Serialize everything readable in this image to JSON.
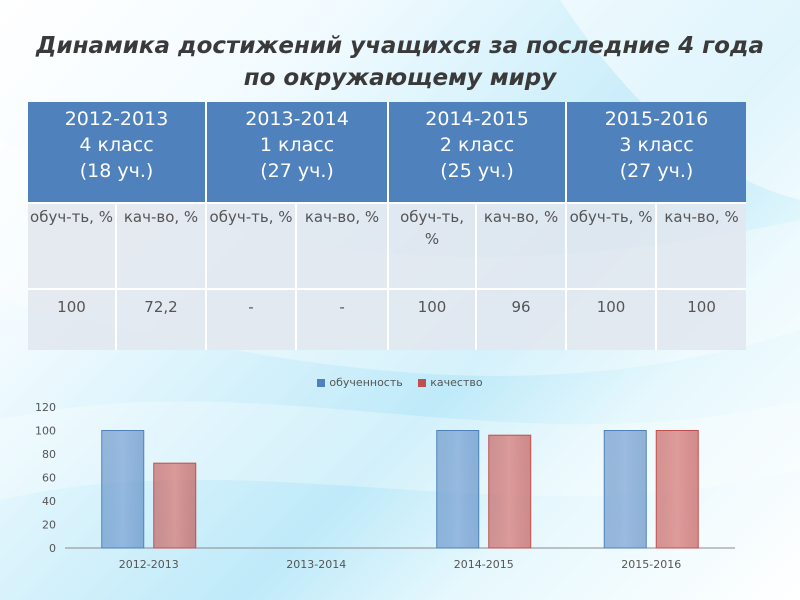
{
  "title": {
    "line1": "Динамика достижений учащихся за последние 4 года",
    "line2": "по окружающему миру"
  },
  "table": {
    "headers": [
      {
        "years": "2012-2013",
        "grade": "4 класс",
        "students": "(18 уч.)"
      },
      {
        "years": "2013-2014",
        "grade": "1 класс",
        "students": "(27 уч.)"
      },
      {
        "years": "2014-2015",
        "grade": "2 класс",
        "students": "(25 уч.)"
      },
      {
        "years": "2015-2016",
        "grade": "3 класс",
        "students": "(27 уч.)"
      }
    ],
    "subheaders": [
      "обуч-ть, %",
      "кач-во, %",
      "обуч-ть, %",
      "кач-во, %",
      "обуч-ть, %",
      "кач-во, %",
      "обуч-ть, %",
      "кач-во, %"
    ],
    "values": [
      "100",
      "72,2",
      "-",
      "-",
      "100",
      "96",
      "100",
      "100"
    ]
  },
  "colors": {
    "header_bg": "#4f81bd",
    "series_1": "#4f81bd",
    "series_2": "#c0504d"
  },
  "chart_data": {
    "type": "bar",
    "categories": [
      "2012-2013",
      "2013-2014",
      "2014-2015",
      "2015-2016"
    ],
    "series": [
      {
        "name": "обученность",
        "values": [
          100,
          null,
          100,
          100
        ]
      },
      {
        "name": "качество",
        "values": [
          72.2,
          null,
          96,
          100
        ]
      }
    ],
    "ylim": [
      0,
      120
    ],
    "yticks": [
      0,
      20,
      40,
      60,
      80,
      100,
      120
    ],
    "legend": "top",
    "grid": false
  }
}
